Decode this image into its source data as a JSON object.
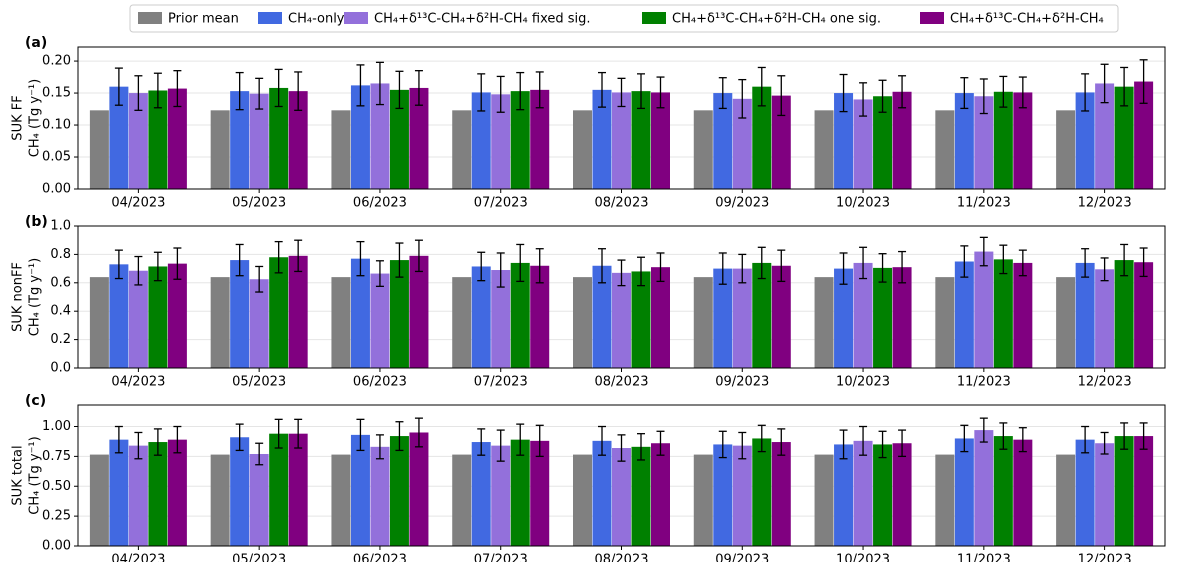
{
  "chart_data": [
    {
      "type": "bar",
      "panel_label": "(a)",
      "ylabel": [
        "SUK FF",
        "CH₄ (Tg y⁻¹)"
      ],
      "categories": [
        "04/2023",
        "05/2023",
        "06/2023",
        "07/2023",
        "08/2023",
        "09/2023",
        "10/2023",
        "11/2023",
        "12/2023"
      ],
      "ylim": [
        0,
        0.222
      ],
      "yticks": [
        {
          "value": 0,
          "label": "0.00"
        },
        {
          "value": 0.05,
          "label": "0.05"
        },
        {
          "value": 0.1,
          "label": "0.10"
        },
        {
          "value": 0.15,
          "label": "0.15"
        },
        {
          "value": 0.2,
          "label": "0.20"
        }
      ],
      "grid": true,
      "series": [
        {
          "name": "Prior mean",
          "color": "#808080",
          "values": [
            0.123,
            0.123,
            0.123,
            0.123,
            0.123,
            0.123,
            0.123,
            0.123,
            0.123
          ]
        },
        {
          "name": "CH₄-only",
          "color": "#4169e1",
          "values": [
            0.16,
            0.153,
            0.162,
            0.151,
            0.155,
            0.15,
            0.15,
            0.15,
            0.151
          ],
          "errors": [
            0.029,
            0.029,
            0.032,
            0.029,
            0.027,
            0.024,
            0.029,
            0.024,
            0.029
          ]
        },
        {
          "name": "CH₄+δ¹³C-CH₄+δ²H-CH₄ fixed sig.",
          "color": "#9370db",
          "values": [
            0.15,
            0.149,
            0.165,
            0.148,
            0.151,
            0.141,
            0.14,
            0.145,
            0.165
          ],
          "errors": [
            0.027,
            0.024,
            0.033,
            0.028,
            0.022,
            0.03,
            0.026,
            0.027,
            0.03
          ]
        },
        {
          "name": "CH₄+δ¹³C-CH₄+δ²H-CH₄ one sig.",
          "color": "#008000",
          "values": [
            0.154,
            0.158,
            0.155,
            0.153,
            0.153,
            0.16,
            0.145,
            0.152,
            0.16
          ],
          "errors": [
            0.027,
            0.029,
            0.029,
            0.029,
            0.027,
            0.03,
            0.025,
            0.024,
            0.03
          ]
        },
        {
          "name": "CH₄+δ¹³C-CH₄+δ²H-CH₄",
          "color": "#800080",
          "values": [
            0.157,
            0.153,
            0.158,
            0.155,
            0.151,
            0.146,
            0.152,
            0.151,
            0.168
          ],
          "errors": [
            0.028,
            0.03,
            0.027,
            0.028,
            0.024,
            0.031,
            0.025,
            0.024,
            0.034
          ]
        }
      ]
    },
    {
      "type": "bar",
      "panel_label": "(b)",
      "ylabel": [
        "SUK nonFF",
        "CH₄ (Tg y⁻¹)"
      ],
      "categories": [
        "04/2023",
        "05/2023",
        "06/2023",
        "07/2023",
        "08/2023",
        "09/2023",
        "10/2023",
        "11/2023",
        "12/2023"
      ],
      "ylim": [
        0,
        1.0
      ],
      "yticks": [
        {
          "value": 0,
          "label": "0.0"
        },
        {
          "value": 0.2,
          "label": "0.2"
        },
        {
          "value": 0.4,
          "label": "0.4"
        },
        {
          "value": 0.6,
          "label": "0.6"
        },
        {
          "value": 0.8,
          "label": "0.8"
        },
        {
          "value": 1.0,
          "label": "1.0"
        }
      ],
      "grid": true,
      "series": [
        {
          "color": "#808080",
          "values": [
            0.64,
            0.64,
            0.64,
            0.64,
            0.64,
            0.64,
            0.64,
            0.64,
            0.64
          ]
        },
        {
          "color": "#4169e1",
          "values": [
            0.73,
            0.76,
            0.77,
            0.715,
            0.72,
            0.7,
            0.7,
            0.75,
            0.74
          ],
          "errors": [
            0.1,
            0.11,
            0.12,
            0.1,
            0.12,
            0.11,
            0.11,
            0.11,
            0.1
          ]
        },
        {
          "color": "#9370db",
          "values": [
            0.685,
            0.625,
            0.665,
            0.69,
            0.67,
            0.7,
            0.74,
            0.82,
            0.695
          ],
          "errors": [
            0.1,
            0.09,
            0.09,
            0.12,
            0.09,
            0.1,
            0.11,
            0.1,
            0.08
          ]
        },
        {
          "color": "#008000",
          "values": [
            0.715,
            0.78,
            0.76,
            0.74,
            0.68,
            0.74,
            0.705,
            0.765,
            0.76
          ],
          "errors": [
            0.1,
            0.11,
            0.12,
            0.13,
            0.1,
            0.11,
            0.1,
            0.1,
            0.11
          ]
        },
        {
          "color": "#800080",
          "values": [
            0.735,
            0.79,
            0.79,
            0.72,
            0.71,
            0.72,
            0.71,
            0.74,
            0.745
          ],
          "errors": [
            0.11,
            0.11,
            0.11,
            0.12,
            0.1,
            0.11,
            0.11,
            0.09,
            0.1
          ]
        }
      ]
    },
    {
      "type": "bar",
      "panel_label": "(c)",
      "ylabel": [
        "SUK total",
        "CH₄ (Tg y⁻¹)"
      ],
      "categories": [
        "04/2023",
        "05/2023",
        "06/2023",
        "07/2023",
        "08/2023",
        "09/2023",
        "10/2023",
        "11/2023",
        "12/2023"
      ],
      "ylim": [
        0,
        1.18
      ],
      "yticks": [
        {
          "value": 0,
          "label": "0.00"
        },
        {
          "value": 0.25,
          "label": "0.25"
        },
        {
          "value": 0.5,
          "label": "0.50"
        },
        {
          "value": 0.75,
          "label": "0.75"
        },
        {
          "value": 1.0,
          "label": "1.00"
        }
      ],
      "grid": true,
      "series": [
        {
          "color": "#808080",
          "values": [
            0.765,
            0.765,
            0.765,
            0.765,
            0.765,
            0.765,
            0.765,
            0.765,
            0.765
          ]
        },
        {
          "color": "#4169e1",
          "values": [
            0.89,
            0.91,
            0.93,
            0.87,
            0.88,
            0.85,
            0.85,
            0.9,
            0.89
          ],
          "errors": [
            0.11,
            0.11,
            0.13,
            0.11,
            0.12,
            0.11,
            0.12,
            0.11,
            0.11
          ]
        },
        {
          "color": "#9370db",
          "values": [
            0.84,
            0.77,
            0.83,
            0.84,
            0.82,
            0.84,
            0.88,
            0.97,
            0.86
          ],
          "errors": [
            0.11,
            0.09,
            0.1,
            0.13,
            0.11,
            0.11,
            0.12,
            0.1,
            0.09
          ]
        },
        {
          "color": "#008000",
          "values": [
            0.87,
            0.94,
            0.92,
            0.89,
            0.83,
            0.9,
            0.85,
            0.92,
            0.92
          ],
          "errors": [
            0.11,
            0.12,
            0.12,
            0.13,
            0.11,
            0.11,
            0.11,
            0.11,
            0.11
          ]
        },
        {
          "color": "#800080",
          "values": [
            0.89,
            0.94,
            0.95,
            0.88,
            0.86,
            0.87,
            0.86,
            0.89,
            0.92
          ],
          "errors": [
            0.11,
            0.12,
            0.12,
            0.13,
            0.1,
            0.11,
            0.11,
            0.1,
            0.11
          ]
        }
      ]
    }
  ]
}
